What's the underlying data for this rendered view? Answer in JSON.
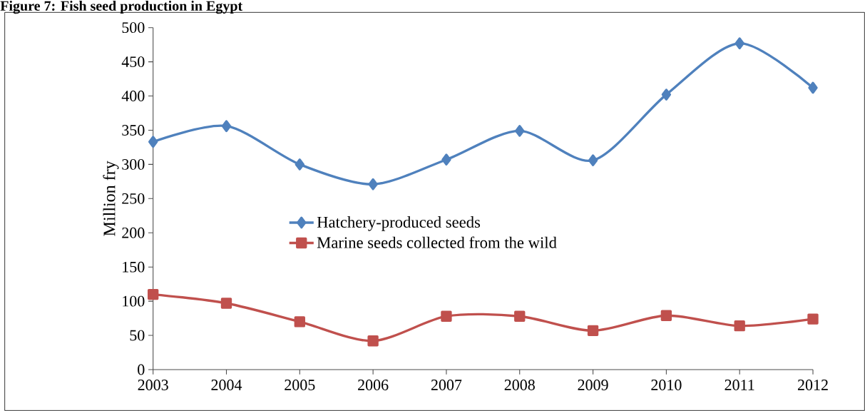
{
  "chart_data": {
    "type": "line",
    "title": "Figure 7: Fish seed production in Egypt",
    "ylabel": "Million fry",
    "categories": [
      "2003",
      "2004",
      "2005",
      "2006",
      "2007",
      "2008",
      "2009",
      "2010",
      "2011",
      "2012"
    ],
    "series": [
      {
        "name": "Hatchery-produced seeds",
        "color": "#4f81bd",
        "marker": "diamond",
        "values": [
          333,
          356,
          300,
          271,
          307,
          349,
          306,
          402,
          477,
          412
        ]
      },
      {
        "name": "Marine seeds collected from the wild",
        "color": "#c0504d",
        "marker": "square",
        "values": [
          110,
          97,
          70,
          42,
          78,
          78,
          57,
          79,
          64,
          74
        ]
      }
    ],
    "ylim": [
      0,
      500
    ],
    "yticks": [
      0,
      50,
      100,
      150,
      200,
      250,
      300,
      350,
      400,
      450,
      500
    ],
    "grid": false,
    "legend": "center left"
  }
}
